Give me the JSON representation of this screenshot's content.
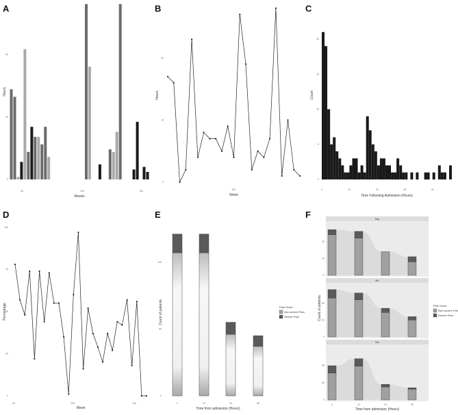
{
  "colors": {
    "bar_dark": "#1a1a1a",
    "bar_mid": "#6b6b6b",
    "bar_light": "#a9a9a9",
    "line": "#222222",
    "severe": "#5a5a5a",
    "nonsevere": "#a0a0a0",
    "strip": "#dcdcdc",
    "panel_bg": "#ebebeb"
  },
  "chart_data": [
    {
      "panel": "A",
      "type": "bar",
      "xlabel": "Weeks",
      "ylabel": "Hours",
      "xtick_labels": [
        "40",
        "100",
        "140"
      ],
      "ytick_labels": [
        "0",
        "25",
        "50"
      ],
      "ylim": [
        0,
        70
      ],
      "values": [
        36,
        33,
        1,
        7,
        52,
        11,
        21,
        17,
        17,
        14,
        21,
        9,
        0,
        0,
        0,
        0,
        0,
        0,
        0,
        0,
        0,
        0,
        70,
        45,
        0,
        0,
        6,
        0,
        0,
        12,
        11,
        19,
        70,
        0,
        0,
        0,
        4,
        23,
        0,
        5,
        3
      ],
      "shade": [
        "m",
        "m",
        "l",
        "d",
        "l",
        "m",
        "d",
        "m",
        "l",
        "m",
        "m",
        "l",
        "n",
        "n",
        "n",
        "n",
        "n",
        "n",
        "n",
        "n",
        "n",
        "n",
        "m",
        "l",
        "n",
        "n",
        "d",
        "n",
        "n",
        "m",
        "l",
        "l",
        "m",
        "n",
        "n",
        "n",
        "d",
        "d",
        "n",
        "d",
        "d"
      ]
    },
    {
      "panel": "B",
      "type": "line",
      "xlabel": "Week",
      "ylabel": "Hours",
      "xtick_labels": [
        "100"
      ],
      "ytick_labels": [
        "0",
        "10",
        "20"
      ],
      "ylim": [
        0,
        28
      ],
      "values": [
        17,
        16,
        0,
        2,
        23,
        4,
        8,
        7,
        7,
        5,
        9,
        4,
        0,
        0,
        0,
        0,
        0,
        0,
        0,
        0,
        0,
        27,
        19,
        0,
        0,
        0,
        2,
        0,
        0,
        5,
        4,
        7,
        28,
        0,
        0,
        0,
        1,
        10,
        0,
        2,
        1
      ],
      "points_compact": [
        17,
        16,
        0,
        2,
        23,
        4,
        8,
        7,
        7,
        5,
        9,
        4,
        27,
        19,
        2,
        5,
        4,
        7,
        28,
        1,
        10,
        2,
        1
      ]
    },
    {
      "panel": "C",
      "type": "bar",
      "xlabel": "Time Following Admission (Hours)",
      "ylabel": "Count",
      "xtick_labels": [
        "0",
        "10",
        "20",
        "30",
        "40"
      ],
      "ytick_labels": [
        "0",
        "5",
        "10",
        "15",
        "20"
      ],
      "xlim": [
        0,
        47
      ],
      "ylim": [
        0,
        24
      ],
      "values": [
        21,
        19,
        10,
        5,
        6,
        4,
        3,
        2,
        1,
        1,
        2,
        3,
        3,
        1,
        2,
        1,
        9,
        7,
        5,
        4,
        2,
        3,
        3,
        2,
        2,
        1,
        1,
        3,
        2,
        1,
        1,
        0,
        1,
        0,
        1,
        0,
        0,
        1,
        1,
        0,
        1,
        0,
        2,
        1,
        1,
        0,
        2
      ],
      "bins_start": 0,
      "bin_width": 1
    },
    {
      "panel": "D",
      "type": "line",
      "xlabel": "Week",
      "ylabel": "Percentage",
      "xtick_labels": [
        "40",
        "100",
        "140"
      ],
      "ytick_labels": [
        "0",
        "25",
        "50",
        "75",
        "100"
      ],
      "ylim": [
        0,
        100
      ],
      "values": [
        78,
        57,
        48,
        74,
        22,
        74,
        44,
        73,
        55,
        55,
        35,
        1,
        60,
        97,
        16,
        52,
        37,
        29,
        20,
        37,
        27,
        44,
        42,
        57,
        18,
        56,
        0,
        0
      ],
      "xs": [
        0,
        1,
        2,
        3,
        4,
        5,
        6,
        7,
        8,
        9,
        10,
        11,
        12,
        13,
        14,
        15,
        16,
        17,
        18,
        19,
        20,
        21,
        22,
        23,
        24,
        25,
        26,
        27
      ]
    },
    {
      "panel": "E",
      "type": "bar",
      "stacked": true,
      "xlabel": "Time from admission (Hours)",
      "ylabel": "Count of patients",
      "categories": [
        "0",
        "12",
        "24",
        "36"
      ],
      "ylim": [
        0,
        125
      ],
      "ytick_labels": [
        "0",
        "50",
        "100"
      ],
      "series": [
        {
          "name": "Non-severe Pain",
          "values": [
            107,
            107,
            46,
            37
          ]
        },
        {
          "name": "Severe Pain",
          "values": [
            14,
            14,
            9,
            8
          ]
        }
      ],
      "legend_title": "Pain Score"
    },
    {
      "panel": "F",
      "type": "bar",
      "stacked": true,
      "xlabel": "Time from admission (Hours)",
      "ylabel": "Count of patients",
      "categories": [
        "0",
        "12",
        "24",
        "36"
      ],
      "legend_title": "Pain Score",
      "legend_entries": [
        "Non-severe Pain",
        "Severe Pain"
      ],
      "facets": [
        {
          "strip": "Day",
          "ylim": [
            0,
            30
          ],
          "series": [
            {
              "name": "Non-severe Pain",
              "values": [
                24,
                22,
                14,
                8
              ]
            },
            {
              "name": "Severe Pain",
              "values": [
                3,
                4,
                0,
                3
              ]
            }
          ]
        },
        {
          "strip": "Mix",
          "ylim": [
            0,
            60
          ],
          "series": [
            {
              "name": "Non-severe Pain",
              "values": [
                46,
                44,
                29,
                20
              ]
            },
            {
              "name": "Severe Pain",
              "values": [
                10,
                8,
                5,
                4
              ]
            }
          ]
        },
        {
          "strip": "Sev",
          "ylim": [
            0,
            120
          ],
          "series": [
            {
              "name": "Non-severe Pain",
              "values": [
                62,
                78,
                30,
                25
              ]
            },
            {
              "name": "Severe Pain",
              "values": [
                17,
                17,
                6,
                3
              ]
            }
          ]
        }
      ]
    }
  ]
}
